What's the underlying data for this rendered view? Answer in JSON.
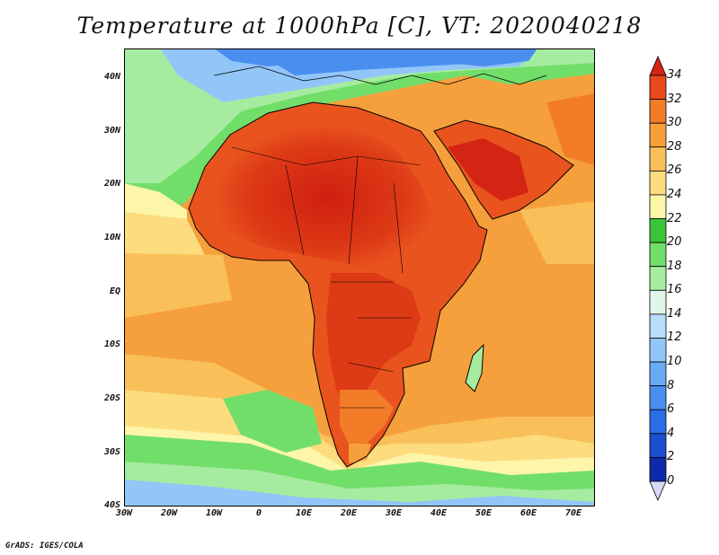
{
  "title": "Temperature at 1000hPa [C], VT: 2020040218",
  "footer": "GrADS: IGES/COLA",
  "map": {
    "lon_labels": [
      "30W",
      "20W",
      "10W",
      "0",
      "10E",
      "20E",
      "30E",
      "40E",
      "50E",
      "60E",
      "70E"
    ],
    "lat_labels": [
      "40N",
      "30N",
      "20N",
      "10N",
      "EQ",
      "10S",
      "20S",
      "30S",
      "40S"
    ],
    "lon_range": [
      -30,
      75
    ],
    "lat_range": [
      -40,
      44
    ]
  },
  "colorbar": {
    "labels": [
      "34",
      "32",
      "30",
      "28",
      "26",
      "24",
      "22",
      "20",
      "18",
      "16",
      "14",
      "12",
      "10",
      "8",
      "6",
      "4",
      "2",
      "0"
    ],
    "colors": [
      "#0a0a78",
      "#0f2aa8",
      "#1b4ed0",
      "#2c6ee8",
      "#4a8ff0",
      "#6aaaf5",
      "#92c6f8",
      "#b8dcfa",
      "#e0f6e8",
      "#a6eca0",
      "#72de6a",
      "#3cc43a",
      "#fdf5a8",
      "#fcdc7e",
      "#f9c05a",
      "#f5a03c",
      "#f27c28",
      "#e94a1c",
      "#d42414"
    ]
  }
}
